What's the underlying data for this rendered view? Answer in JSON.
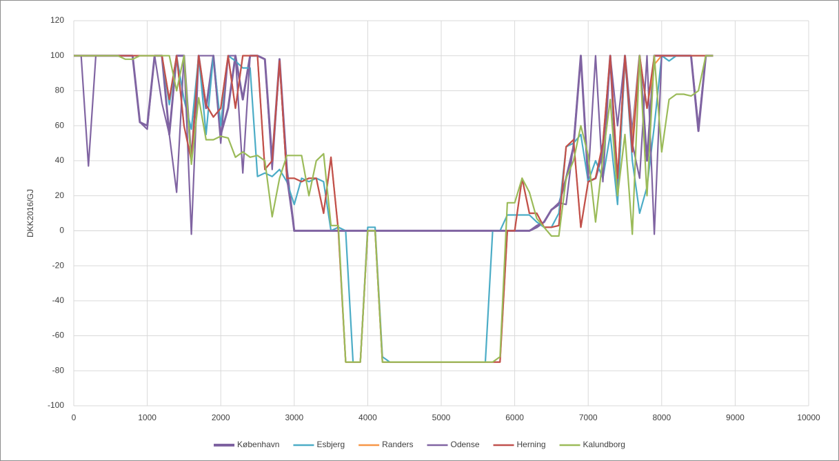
{
  "chart_data": {
    "type": "line",
    "y_label": "DKK2016/GJ",
    "x": [
      0,
      100,
      200,
      300,
      400,
      500,
      600,
      700,
      800,
      900,
      1000,
      1100,
      1200,
      1300,
      1400,
      1500,
      1600,
      1700,
      1800,
      1900,
      2000,
      2100,
      2200,
      2300,
      2400,
      2500,
      2600,
      2700,
      2800,
      2900,
      3000,
      3100,
      3200,
      3300,
      3400,
      3500,
      3600,
      3700,
      3800,
      3900,
      4000,
      4100,
      4200,
      4300,
      4400,
      4500,
      4600,
      4700,
      4800,
      4900,
      5000,
      5100,
      5200,
      5300,
      5400,
      5500,
      5600,
      5700,
      5800,
      5900,
      6000,
      6100,
      6200,
      6300,
      6400,
      6500,
      6600,
      6700,
      6800,
      6900,
      7000,
      7100,
      7200,
      7300,
      7400,
      7500,
      7600,
      7700,
      7800,
      7900,
      8000,
      8100,
      8200,
      8300,
      8400,
      8500,
      8600,
      8700
    ],
    "series": [
      {
        "name": "København",
        "color": "#7e62a1",
        "values": [
          100,
          100,
          100,
          100,
          100,
          100,
          100,
          100,
          100,
          62,
          60,
          100,
          100,
          55,
          100,
          100,
          40,
          100,
          70,
          100,
          55,
          70,
          100,
          75,
          100,
          100,
          98,
          40,
          98,
          35,
          0,
          0,
          0,
          0,
          0,
          0,
          0,
          0,
          0,
          0,
          0,
          0,
          0,
          0,
          0,
          0,
          0,
          0,
          0,
          0,
          0,
          0,
          0,
          0,
          0,
          0,
          0,
          0,
          0,
          0,
          0,
          0,
          0,
          2,
          5,
          12,
          15,
          30,
          48,
          100,
          28,
          30,
          45,
          100,
          20,
          100,
          55,
          100,
          40,
          100,
          100,
          100,
          100,
          100,
          100,
          57,
          100,
          100
        ]
      },
      {
        "name": "Esbjerg",
        "color": "#4bacc6",
        "values": [
          100,
          100,
          100,
          100,
          100,
          100,
          100,
          100,
          100,
          100,
          100,
          100,
          100,
          72,
          100,
          75,
          58,
          100,
          55,
          100,
          60,
          100,
          97,
          93,
          93,
          31,
          33,
          31,
          35,
          28,
          15,
          30,
          28,
          30,
          28,
          0,
          2,
          0,
          -75,
          -75,
          2,
          2,
          -72,
          -75,
          -75,
          -75,
          -75,
          -75,
          -75,
          -75,
          -75,
          -75,
          -75,
          -75,
          -75,
          -75,
          -75,
          0,
          0,
          9,
          9,
          9,
          9,
          5,
          2,
          2,
          10,
          48,
          50,
          55,
          28,
          40,
          30,
          55,
          15,
          100,
          40,
          10,
          25,
          60,
          100,
          97,
          100,
          100,
          100,
          100,
          100,
          100
        ]
      },
      {
        "name": "Randers",
        "color": "#f79646",
        "values": [
          100,
          100,
          100,
          100,
          100,
          100,
          100,
          100,
          100,
          100,
          100,
          100,
          100,
          75,
          100,
          60,
          40,
          100,
          72,
          65,
          70,
          100,
          70,
          100,
          100,
          100,
          35,
          40,
          97,
          30,
          30,
          28,
          30,
          30,
          10,
          42,
          0,
          -75,
          -75,
          -75,
          0,
          0,
          -75,
          -75,
          -75,
          -75,
          -75,
          -75,
          -75,
          -75,
          -75,
          -75,
          -75,
          -75,
          -75,
          -75,
          -75,
          -75,
          -75,
          0,
          0,
          30,
          10,
          10,
          2,
          2,
          3,
          48,
          52,
          2,
          28,
          30,
          50,
          100,
          30,
          100,
          52,
          100,
          70,
          95,
          100,
          100,
          100,
          100,
          100,
          100,
          100,
          100
        ]
      },
      {
        "name": "Odense",
        "color": "#8064a2",
        "values": [
          100,
          100,
          37,
          100,
          100,
          100,
          100,
          100,
          100,
          62,
          58,
          100,
          73,
          55,
          22,
          100,
          -2,
          100,
          100,
          100,
          50,
          100,
          100,
          33,
          100,
          100,
          98,
          35,
          97,
          30,
          0,
          0,
          0,
          0,
          0,
          0,
          0,
          0,
          0,
          0,
          0,
          0,
          0,
          0,
          0,
          0,
          0,
          0,
          0,
          0,
          0,
          0,
          0,
          0,
          0,
          0,
          0,
          0,
          0,
          0,
          0,
          0,
          0,
          3,
          5,
          12,
          16,
          15,
          50,
          100,
          30,
          100,
          28,
          100,
          60,
          100,
          50,
          30,
          100,
          -2,
          100,
          100,
          100,
          100,
          100,
          60,
          100,
          100
        ]
      },
      {
        "name": "Herning",
        "color": "#c0504d",
        "values": [
          100,
          100,
          100,
          100,
          100,
          100,
          100,
          100,
          100,
          100,
          100,
          100,
          100,
          75,
          100,
          60,
          40,
          100,
          72,
          65,
          70,
          100,
          70,
          100,
          100,
          100,
          35,
          40,
          97,
          30,
          30,
          28,
          30,
          30,
          10,
          42,
          0,
          -75,
          -75,
          -75,
          0,
          0,
          -75,
          -75,
          -75,
          -75,
          -75,
          -75,
          -75,
          -75,
          -75,
          -75,
          -75,
          -75,
          -75,
          -75,
          -75,
          -75,
          -75,
          0,
          0,
          30,
          10,
          10,
          2,
          2,
          3,
          48,
          52,
          2,
          28,
          30,
          50,
          100,
          30,
          100,
          45,
          100,
          70,
          100,
          100,
          100,
          100,
          100,
          100,
          100,
          100,
          100
        ]
      },
      {
        "name": "Kalundborg",
        "color": "#9bbb59",
        "values": [
          100,
          100,
          100,
          100,
          100,
          100,
          100,
          98,
          98,
          100,
          100,
          100,
          100,
          100,
          80,
          100,
          38,
          76,
          52,
          52,
          54,
          53,
          42,
          45,
          42,
          43,
          40,
          8,
          30,
          43,
          43,
          43,
          20,
          40,
          44,
          3,
          3,
          -75,
          -75,
          -75,
          0,
          0,
          -75,
          -75,
          -75,
          -75,
          -75,
          -75,
          -75,
          -75,
          -75,
          -75,
          -75,
          -75,
          -75,
          -75,
          -75,
          -75,
          -72,
          16,
          16,
          30,
          22,
          7,
          2,
          -3,
          -3,
          30,
          40,
          60,
          43,
          5,
          42,
          75,
          20,
          55,
          -2,
          100,
          20,
          100,
          45,
          75,
          78,
          78,
          77,
          80,
          100,
          100
        ]
      }
    ],
    "xlim": [
      0,
      10000
    ],
    "xticks": [
      0,
      1000,
      2000,
      3000,
      4000,
      5000,
      6000,
      7000,
      8000,
      9000,
      10000
    ],
    "ylim": [
      -100,
      120
    ],
    "yticks": [
      -100,
      -80,
      -60,
      -40,
      -20,
      0,
      20,
      40,
      60,
      80,
      100,
      120
    ],
    "grid": true,
    "legend": "bottom"
  }
}
